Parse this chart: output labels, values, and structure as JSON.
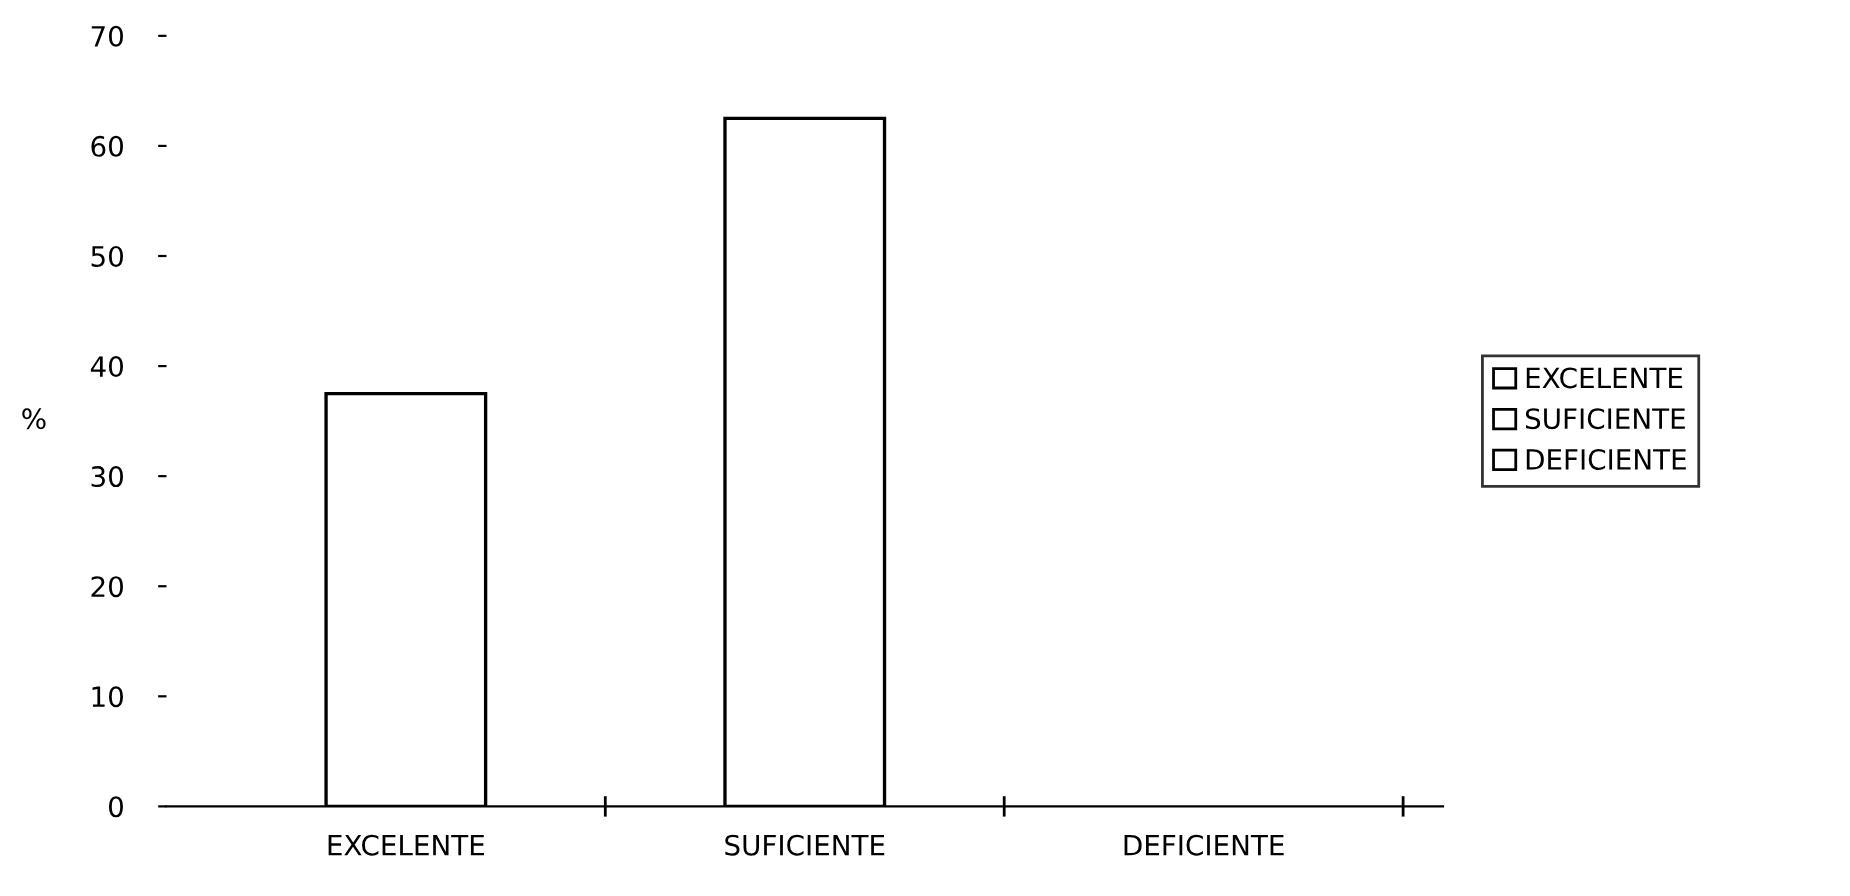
{
  "chart_data": {
    "type": "bar",
    "ylabel": "%",
    "categories": [
      "EXCELENTE",
      "SUFICIENTE",
      "DEFICIENTE"
    ],
    "series": [
      {
        "name": "EXCELENTE",
        "color": "#ffffff",
        "values": [
          37.5,
          null,
          null
        ]
      },
      {
        "name": "SUFICIENTE",
        "color": "#ffffff",
        "values": [
          null,
          62.5,
          null
        ]
      },
      {
        "name": "DEFICIENTE",
        "color": "#ffffff",
        "values": [
          null,
          null,
          0
        ]
      }
    ],
    "ylim": [
      0,
      70
    ],
    "yticks": [
      0,
      10,
      20,
      30,
      40,
      50,
      60,
      70
    ],
    "grid": false,
    "legend": "right"
  }
}
